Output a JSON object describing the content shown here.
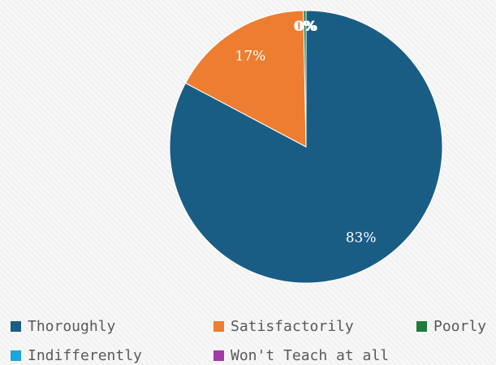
{
  "chart_data": {
    "type": "pie",
    "title": "",
    "categories": [
      "Thoroughly",
      "Satisfactorily",
      "Poorly",
      "Indifferently",
      "Won't Teach at all"
    ],
    "values": [
      83,
      17,
      0.3,
      0,
      0
    ],
    "data_labels": [
      "83%",
      "17%",
      "0%",
      "0%",
      "0%"
    ],
    "colors": [
      "#1a5d84",
      "#ed7d31",
      "#1e7b3a",
      "#1aa6dd",
      "#a23aa8"
    ],
    "legend_position": "bottom"
  },
  "legend": {
    "items": [
      {
        "label": "Thoroughly",
        "color": "#1a5d84"
      },
      {
        "label": "Satisfactorily",
        "color": "#ed7d31"
      },
      {
        "label": "Poorly",
        "color": "#1e7b3a"
      },
      {
        "label": "Indifferently",
        "color": "#1aa6dd"
      },
      {
        "label": "Won't Teach at all",
        "color": "#a23aa8"
      }
    ]
  }
}
